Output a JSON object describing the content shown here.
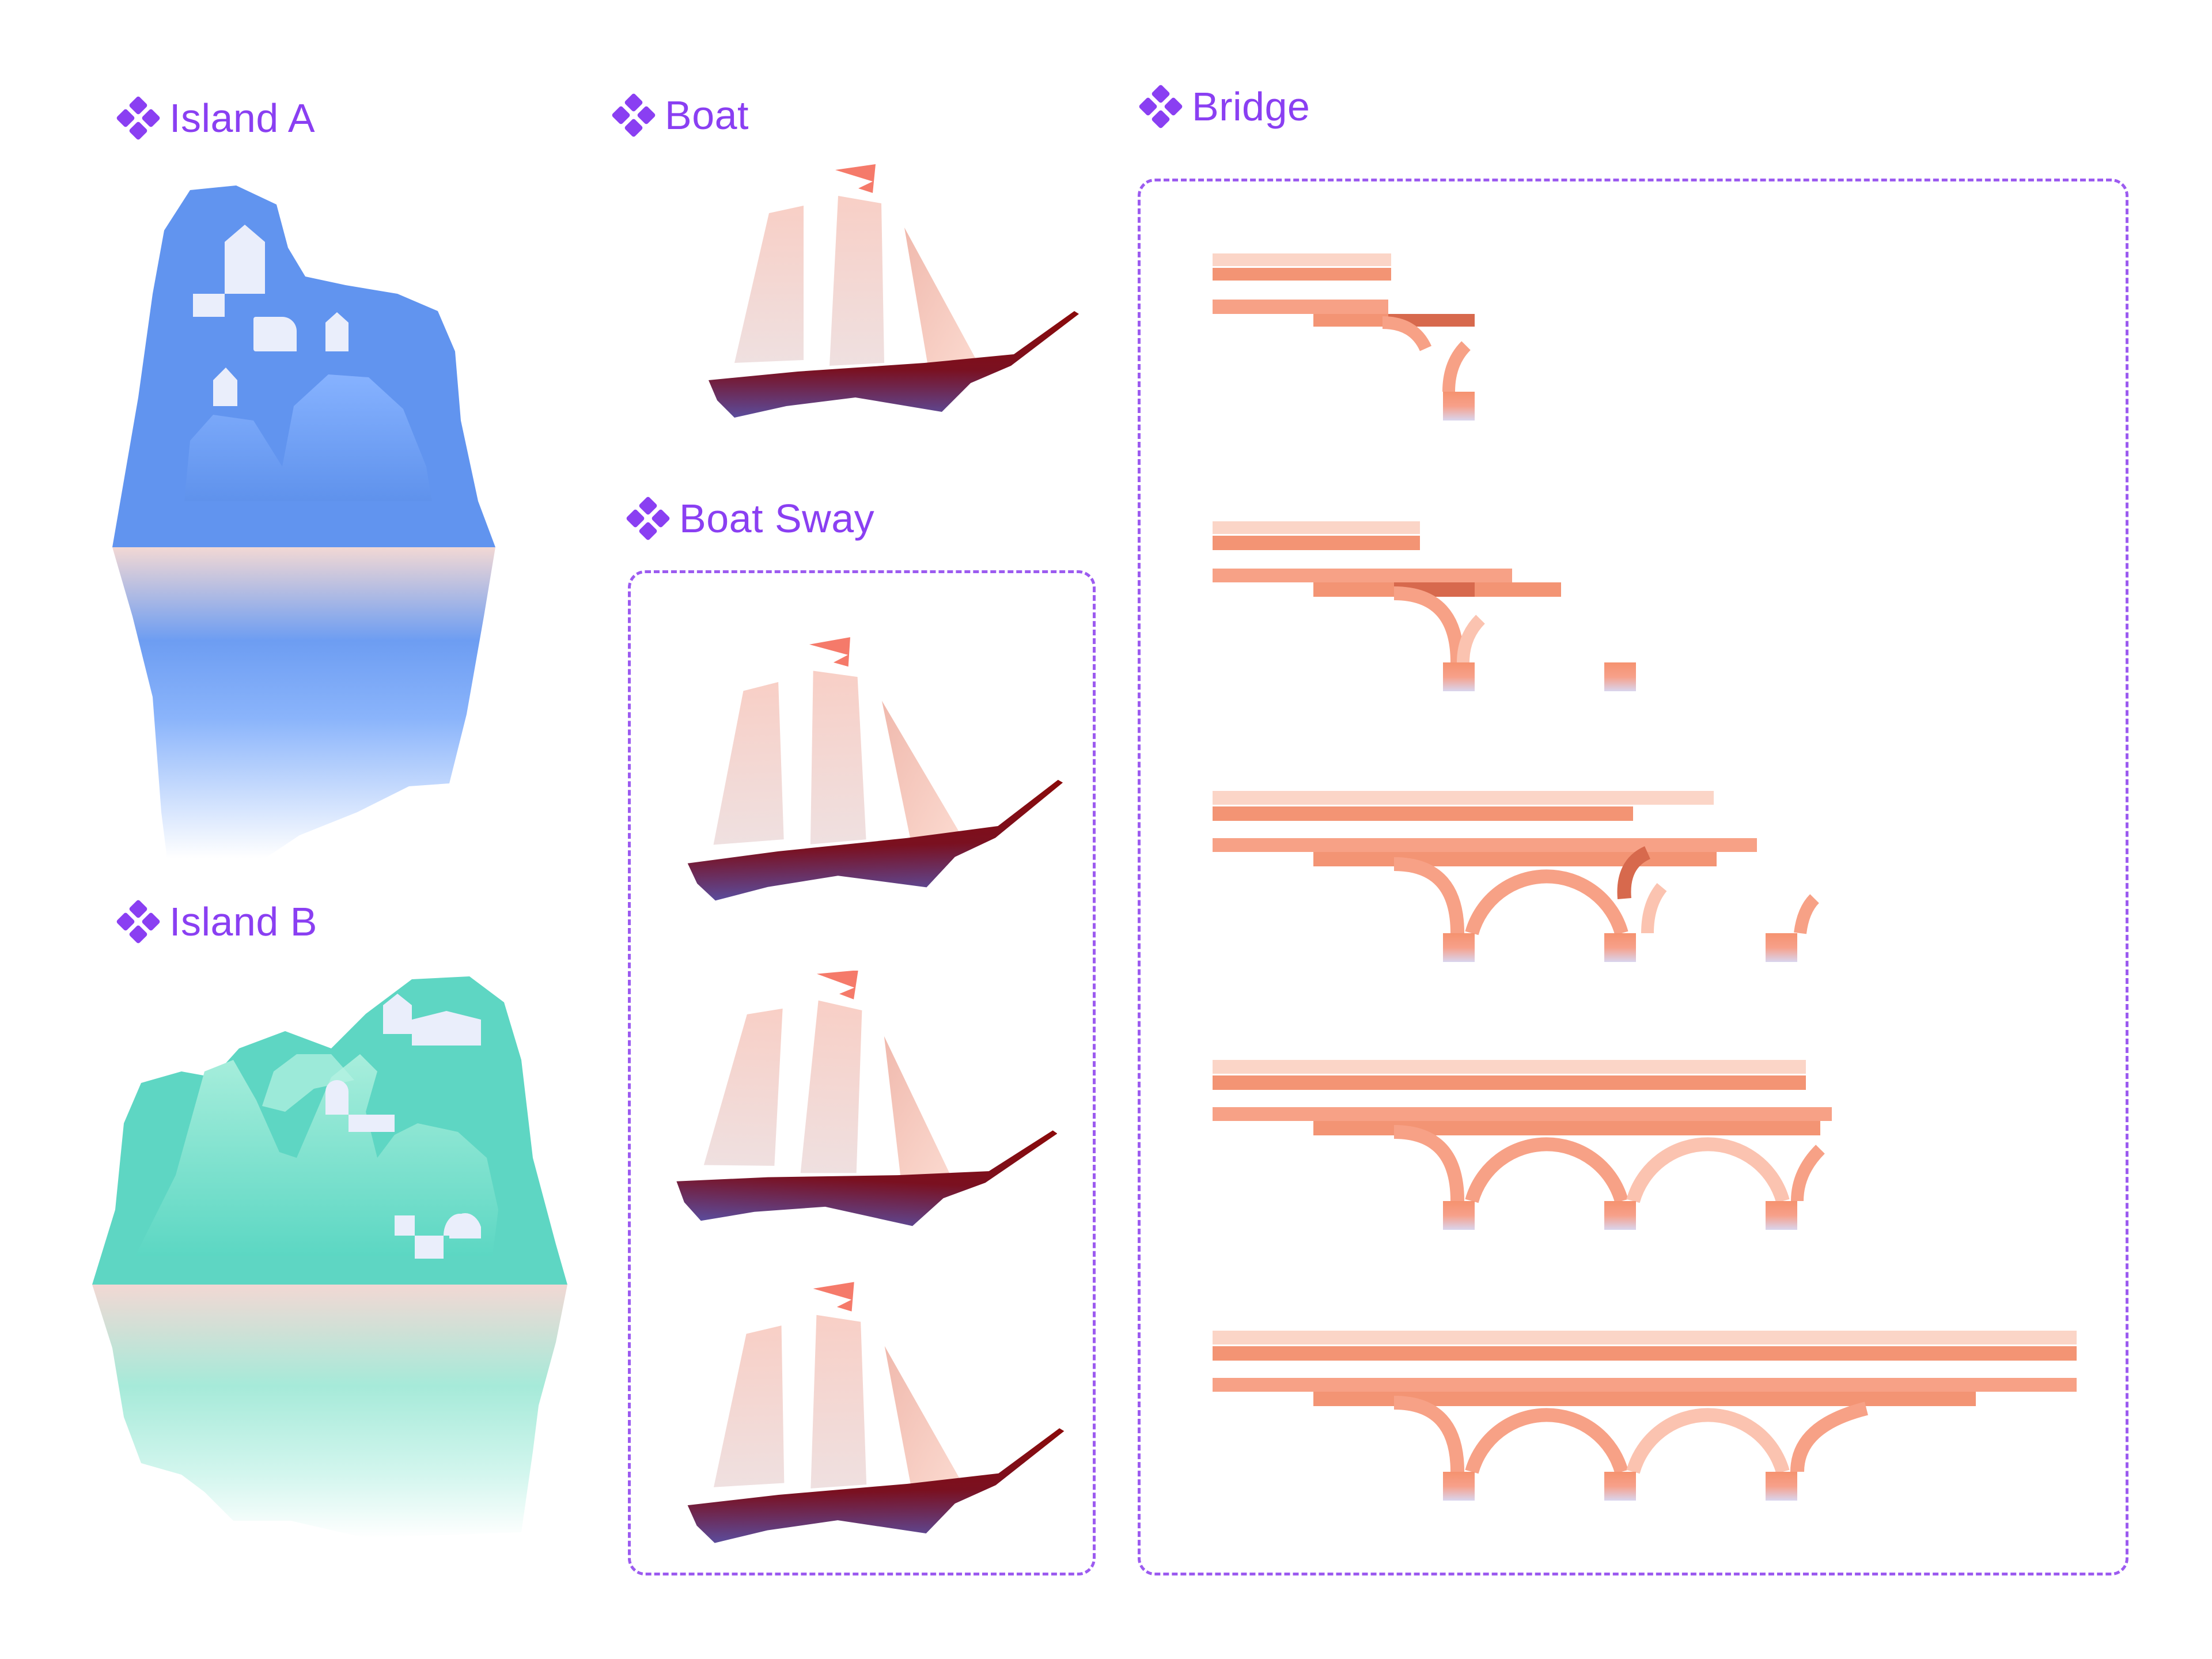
{
  "components": {
    "island_a": {
      "label": "Island A",
      "icon": "component-icon"
    },
    "island_b": {
      "label": "Island B",
      "icon": "component-icon"
    },
    "boat": {
      "label": "Boat",
      "icon": "component-icon"
    },
    "boat_sway": {
      "label": "Boat Sway",
      "icon": "component-icon"
    },
    "bridge": {
      "label": "Bridge",
      "icon": "component-icon"
    }
  },
  "colors": {
    "accent": "#8a3ff2",
    "frame": "#9c5bf0",
    "island_a": "#6194ef",
    "island_b": "#5ed6c3",
    "hull": "#8b0a0a",
    "sail": "#f7d4cc",
    "flag": "#f57a6a",
    "bridge": "#f5926f"
  }
}
